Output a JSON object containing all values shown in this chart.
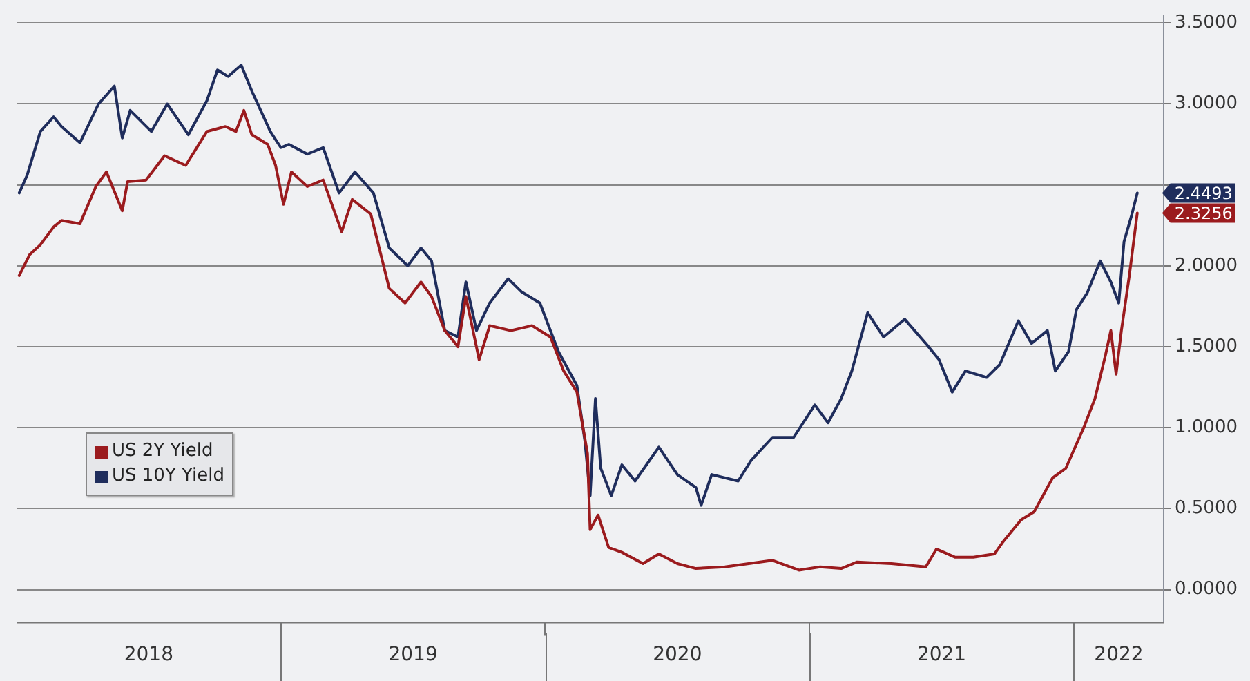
{
  "chart_data": {
    "type": "line",
    "xlim": [
      2018.0,
      2022.34
    ],
    "xticks": [
      {
        "value": 2018.5,
        "label": "2018"
      },
      {
        "value": 2019,
        "label": null
      },
      {
        "value": 2019.5,
        "label": "2019"
      },
      {
        "value": 2020,
        "label": null
      },
      {
        "value": 2020.5,
        "label": "2020"
      },
      {
        "value": 2021,
        "label": null
      },
      {
        "value": 2021.5,
        "label": "2021"
      },
      {
        "value": 2022,
        "label": null
      },
      {
        "value": 2022.17,
        "label": "2022"
      }
    ],
    "ylim": [
      -0.2,
      3.55
    ],
    "yticks": [
      {
        "value": 0,
        "label": "0.0000"
      },
      {
        "value": 0.5,
        "label": "0.5000"
      },
      {
        "value": 1,
        "label": "1.0000"
      },
      {
        "value": 1.5,
        "label": "1.5000"
      },
      {
        "value": 2,
        "label": "2.0000"
      },
      {
        "value": 2.5,
        "label": null
      },
      {
        "value": 3,
        "label": "3.0000"
      },
      {
        "value": 3.5,
        "label": "3.5000"
      }
    ],
    "grid": "y",
    "legend": "left",
    "marker": "none",
    "line_style": "solid",
    "series": [
      {
        "name": "US 2Y Yield",
        "color": "#9b1b1e",
        "x": [
          2018.01,
          2018.05,
          2018.09,
          2018.14,
          2018.17,
          2018.24,
          2018.3,
          2018.34,
          2018.4,
          2018.42,
          2018.49,
          2018.56,
          2018.64,
          2018.72,
          2018.79,
          2018.83,
          2018.86,
          2018.89,
          2018.95,
          2018.98,
          2019.01,
          2019.04,
          2019.1,
          2019.16,
          2019.23,
          2019.27,
          2019.34,
          2019.41,
          2019.47,
          2019.53,
          2019.57,
          2019.62,
          2019.67,
          2019.7,
          2019.75,
          2019.79,
          2019.87,
          2019.95,
          2020.02,
          2020.07,
          2020.12,
          2020.16,
          2020.17,
          2020.2,
          2020.24,
          2020.29,
          2020.37,
          2020.43,
          2020.5,
          2020.57,
          2020.68,
          2020.86,
          2020.96,
          2021.04,
          2021.12,
          2021.18,
          2021.31,
          2021.44,
          2021.48,
          2021.55,
          2021.62,
          2021.7,
          2021.73,
          2021.8,
          2021.85,
          2021.92,
          2021.97,
          2022.04,
          2022.08,
          2022.12,
          2022.14,
          2022.16,
          2022.18,
          2022.21,
          2022.24
        ],
        "values": [
          1.94,
          2.07,
          2.13,
          2.24,
          2.28,
          2.26,
          2.49,
          2.58,
          2.34,
          2.52,
          2.53,
          2.68,
          2.62,
          2.83,
          2.86,
          2.83,
          2.96,
          2.81,
          2.75,
          2.62,
          2.38,
          2.58,
          2.49,
          2.53,
          2.21,
          2.41,
          2.32,
          1.86,
          1.77,
          1.9,
          1.81,
          1.6,
          1.5,
          1.81,
          1.42,
          1.63,
          1.6,
          1.63,
          1.56,
          1.35,
          1.22,
          0.84,
          0.37,
          0.46,
          0.26,
          0.23,
          0.16,
          0.22,
          0.16,
          0.13,
          0.14,
          0.18,
          0.12,
          0.14,
          0.13,
          0.17,
          0.16,
          0.14,
          0.25,
          0.2,
          0.2,
          0.22,
          0.29,
          0.43,
          0.48,
          0.69,
          0.75,
          1.01,
          1.18,
          1.45,
          1.6,
          1.33,
          1.6,
          1.94,
          2.3256
        ]
      },
      {
        "name": "US 10Y Yield",
        "color": "#1f2d5c",
        "x": [
          2018.01,
          2018.04,
          2018.09,
          2018.14,
          2018.17,
          2018.24,
          2018.31,
          2018.37,
          2018.4,
          2018.43,
          2018.51,
          2018.57,
          2018.65,
          2018.72,
          2018.76,
          2018.8,
          2018.85,
          2018.89,
          2018.96,
          2019.0,
          2019.03,
          2019.1,
          2019.16,
          2019.22,
          2019.28,
          2019.35,
          2019.41,
          2019.48,
          2019.53,
          2019.57,
          2019.62,
          2019.67,
          2019.7,
          2019.74,
          2019.79,
          2019.86,
          2019.91,
          2019.98,
          2020.05,
          2020.12,
          2020.15,
          2020.17,
          2020.19,
          2020.21,
          2020.25,
          2020.29,
          2020.34,
          2020.43,
          2020.5,
          2020.57,
          2020.59,
          2020.63,
          2020.73,
          2020.78,
          2020.86,
          2020.94,
          2021.02,
          2021.07,
          2021.12,
          2021.16,
          2021.22,
          2021.28,
          2021.36,
          2021.44,
          2021.49,
          2021.54,
          2021.59,
          2021.67,
          2021.72,
          2021.79,
          2021.84,
          2021.9,
          2021.93,
          2021.98,
          2022.01,
          2022.05,
          2022.1,
          2022.14,
          2022.17,
          2022.19,
          2022.22,
          2022.24
        ],
        "values": [
          2.45,
          2.56,
          2.83,
          2.92,
          2.86,
          2.76,
          3.0,
          3.11,
          2.79,
          2.96,
          2.83,
          3.0,
          2.81,
          3.02,
          3.21,
          3.17,
          3.24,
          3.08,
          2.83,
          2.73,
          2.75,
          2.69,
          2.73,
          2.45,
          2.58,
          2.45,
          2.11,
          2.0,
          2.11,
          2.03,
          1.6,
          1.56,
          1.9,
          1.6,
          1.77,
          1.92,
          1.84,
          1.77,
          1.47,
          1.26,
          0.92,
          0.58,
          1.18,
          0.75,
          0.58,
          0.77,
          0.67,
          0.88,
          0.71,
          0.63,
          0.52,
          0.71,
          0.67,
          0.8,
          0.94,
          0.94,
          1.14,
          1.03,
          1.18,
          1.35,
          1.71,
          1.56,
          1.67,
          1.52,
          1.42,
          1.22,
          1.35,
          1.31,
          1.39,
          1.66,
          1.52,
          1.6,
          1.35,
          1.47,
          1.73,
          1.83,
          2.03,
          1.9,
          1.77,
          2.15,
          2.32,
          2.4493
        ]
      }
    ],
    "annotations": [
      {
        "text": "2.3256",
        "x": 2022.24,
        "y": 2.3256
      },
      {
        "text": "2.4493",
        "x": 2022.24,
        "y": 2.4493
      }
    ]
  }
}
